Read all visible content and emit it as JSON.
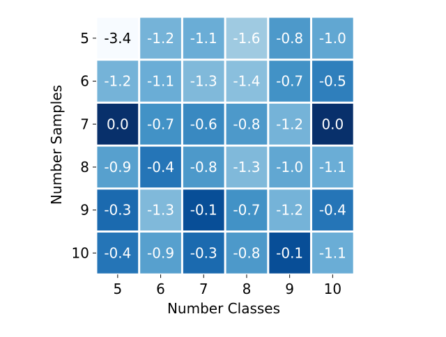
{
  "chart_data": {
    "type": "heatmap",
    "xlabel": "Number Classes",
    "ylabel": "Number Samples",
    "x_categories": [
      "5",
      "6",
      "7",
      "8",
      "9",
      "10"
    ],
    "y_categories": [
      "5",
      "6",
      "7",
      "8",
      "9",
      "10"
    ],
    "values": [
      [
        -3.4,
        -1.2,
        -1.1,
        -1.6,
        -0.8,
        -1.0
      ],
      [
        -1.2,
        -1.1,
        -1.3,
        -1.4,
        -0.7,
        -0.5
      ],
      [
        0.0,
        -0.7,
        -0.6,
        -0.8,
        -1.2,
        0.0
      ],
      [
        -0.9,
        -0.4,
        -0.8,
        -1.3,
        -1.0,
        -1.1
      ],
      [
        -0.3,
        -1.3,
        -0.1,
        -0.7,
        -1.2,
        -0.4
      ],
      [
        -0.4,
        -0.9,
        -0.3,
        -0.8,
        -0.1,
        -1.1
      ]
    ],
    "labels": [
      [
        "-3.4",
        "-1.2",
        "-1.1",
        "-1.6",
        "-0.8",
        "-1.0"
      ],
      [
        "-1.2",
        "-1.1",
        "-1.3",
        "-1.4",
        "-0.7",
        "-0.5"
      ],
      [
        "0.0",
        "-0.7",
        "-0.6",
        "-0.8",
        "-1.2",
        "0.0"
      ],
      [
        "-0.9",
        "-0.4",
        "-0.8",
        "-1.3",
        "-1.0",
        "-1.1"
      ],
      [
        "-0.3",
        "-1.3",
        "-0.1",
        "-0.7",
        "-1.2",
        "-0.4"
      ],
      [
        "-0.4",
        "-0.9",
        "-0.3",
        "-0.8",
        "-0.1",
        "-1.1"
      ]
    ],
    "colormap": "Blues",
    "color_range": [
      -3.4,
      0.0
    ],
    "colors": {
      "low": "#f7fbff",
      "high": "#08306b",
      "cell_border": "#ffffff",
      "text_dark": "#000000",
      "text_light": "#ffffff",
      "axis_text": "#000000"
    },
    "grid": false,
    "legend": "none"
  }
}
